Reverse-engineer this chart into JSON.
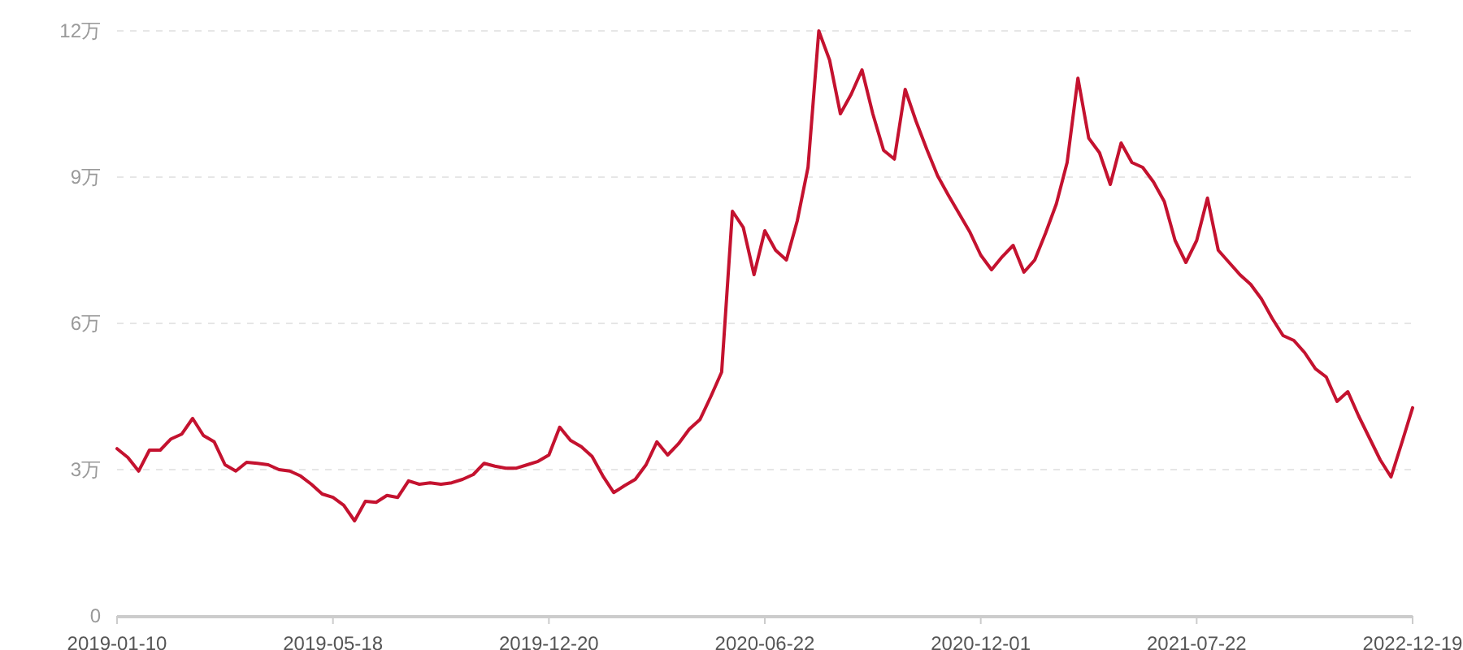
{
  "chart_data": {
    "type": "line",
    "categories": [
      "2019-01-10",
      null,
      null,
      null,
      null,
      null,
      null,
      null,
      null,
      null,
      null,
      null,
      null,
      null,
      null,
      null,
      null,
      null,
      null,
      null,
      "2019-05-18",
      null,
      null,
      null,
      null,
      null,
      null,
      null,
      null,
      null,
      null,
      null,
      null,
      null,
      null,
      null,
      null,
      null,
      null,
      null,
      "2019-12-20",
      null,
      null,
      null,
      null,
      null,
      null,
      null,
      null,
      null,
      null,
      null,
      null,
      null,
      null,
      null,
      null,
      null,
      null,
      null,
      "2020-06-22",
      null,
      null,
      null,
      null,
      null,
      null,
      null,
      null,
      null,
      null,
      null,
      null,
      null,
      null,
      null,
      null,
      null,
      null,
      null,
      "2020-12-01",
      null,
      null,
      null,
      null,
      null,
      null,
      null,
      null,
      null,
      null,
      null,
      null,
      null,
      null,
      null,
      null,
      null,
      null,
      null,
      "2021-07-22",
      null,
      null,
      null,
      null,
      null,
      null,
      null,
      null,
      null,
      null,
      null,
      null,
      null,
      null,
      null,
      null,
      null,
      null,
      null,
      "2022-12-19"
    ],
    "series": [
      {
        "color": "#c4122f",
        "values": [
          3.43,
          3.25,
          2.97,
          3.4,
          3.4,
          3.63,
          3.73,
          4.05,
          3.7,
          3.57,
          3.1,
          2.97,
          3.15,
          3.13,
          3.1,
          3.0,
          2.97,
          2.87,
          2.7,
          2.5,
          2.43,
          2.27,
          1.95,
          2.35,
          2.33,
          2.47,
          2.43,
          2.77,
          2.7,
          2.73,
          2.7,
          2.73,
          2.8,
          2.9,
          3.13,
          3.07,
          3.03,
          3.03,
          3.1,
          3.17,
          3.3,
          3.87,
          3.6,
          3.47,
          3.27,
          2.87,
          2.53,
          2.67,
          2.8,
          3.1,
          3.57,
          3.3,
          3.53,
          3.83,
          4.03,
          4.5,
          5.0,
          8.3,
          7.97,
          7.0,
          7.9,
          7.5,
          7.3,
          8.1,
          9.2,
          12.0,
          11.4,
          10.3,
          10.7,
          11.2,
          10.3,
          9.55,
          9.37,
          10.8,
          10.15,
          9.57,
          9.03,
          8.63,
          8.25,
          7.87,
          7.4,
          7.1,
          7.37,
          7.6,
          7.05,
          7.3,
          7.85,
          8.45,
          9.3,
          11.03,
          9.8,
          9.5,
          8.85,
          9.7,
          9.3,
          9.2,
          8.9,
          8.5,
          7.7,
          7.25,
          7.7,
          8.57,
          7.5,
          7.25,
          7.0,
          6.8,
          6.5,
          6.1,
          5.75,
          5.65,
          5.4,
          5.07,
          4.9,
          4.4,
          4.6,
          4.1,
          3.65,
          3.2,
          2.85,
          3.55,
          4.27
        ]
      }
    ],
    "ylim": [
      0,
      12
    ],
    "yticks": [
      0,
      {
        "value": 3,
        "label": "3万"
      },
      {
        "value": 6,
        "label": "6万"
      },
      {
        "value": 9,
        "label": "9万"
      },
      {
        "value": 12,
        "label": "12万"
      }
    ],
    "grid": "y"
  }
}
